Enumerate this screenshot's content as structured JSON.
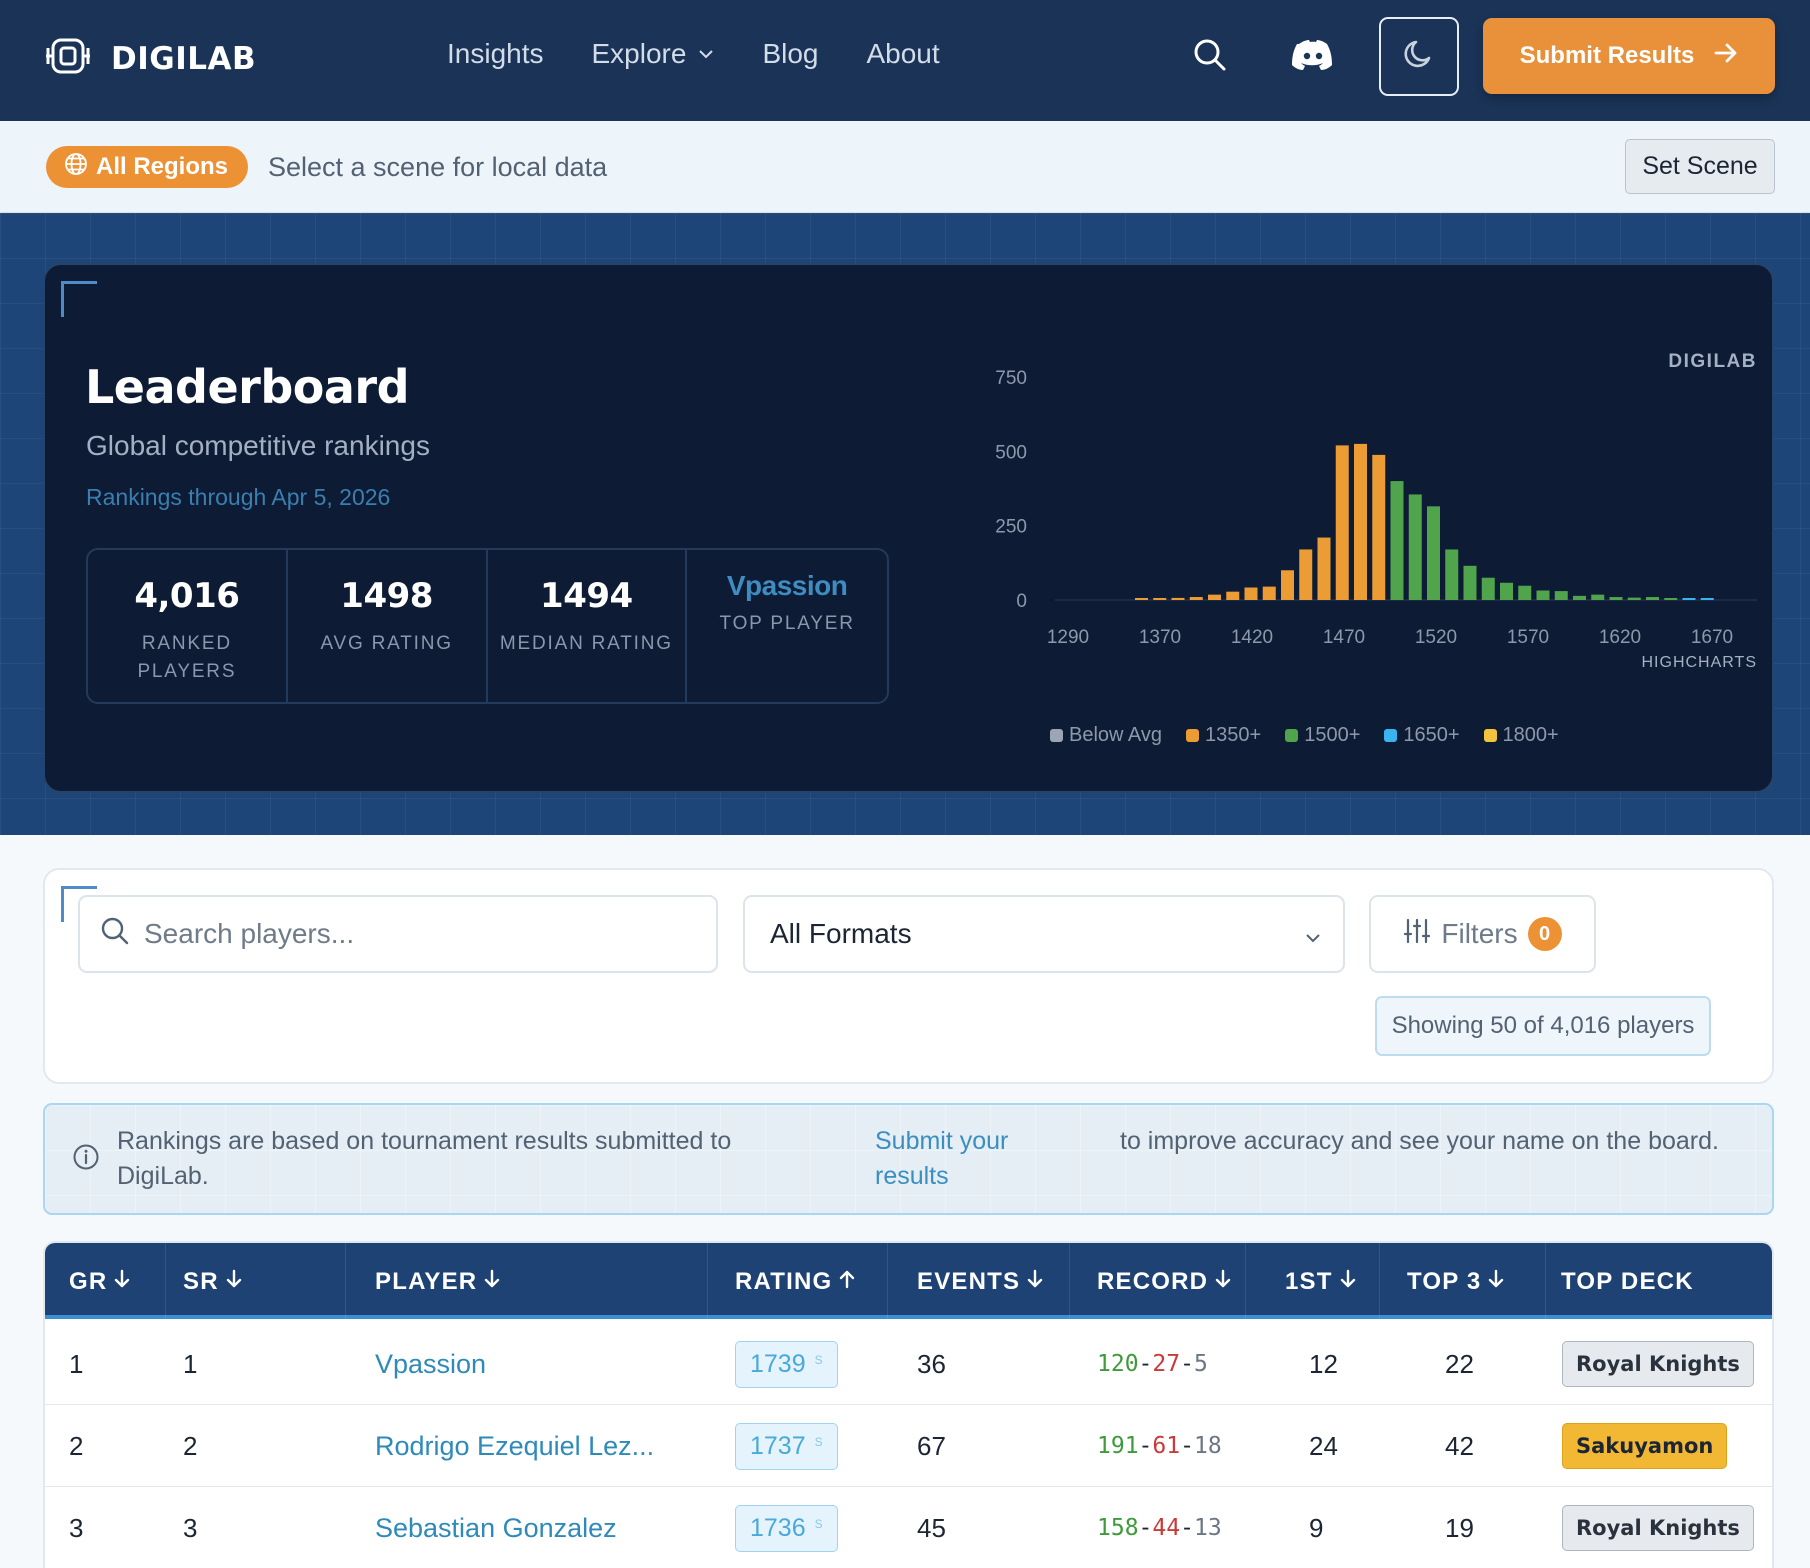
{
  "nav": {
    "logo_text": "DIGILAB",
    "links": [
      "Insights",
      "Explore",
      "Blog",
      "About"
    ],
    "submit_label": "Submit Results"
  },
  "scene": {
    "region_label": "All Regions",
    "prompt": "Select a scene for local data",
    "set_scene_label": "Set Scene"
  },
  "hero": {
    "title": "Leaderboard",
    "subtitle": "Global competitive rankings",
    "date_line": "Rankings through Apr 5, 2026",
    "stats": [
      {
        "value": "4,016",
        "label": "RANKED PLAYERS"
      },
      {
        "value": "1498",
        "label": "AVG RATING"
      },
      {
        "value": "1494",
        "label": "MEDIAN RATING"
      },
      {
        "value": "Vpassion",
        "label": "TOP PLAYER"
      }
    ]
  },
  "chart_data": {
    "type": "bar",
    "brand_label": "DIGILAB",
    "credit": "HIGHCHARTS",
    "x_ticks": [
      "1290",
      "1370",
      "1420",
      "1470",
      "1520",
      "1570",
      "1620",
      "1670"
    ],
    "y_ticks": [
      "0",
      "250",
      "500",
      "750"
    ],
    "ylim": [
      0,
      750
    ],
    "colors": {
      "Below Avg": "#9ba5b4",
      "1350+": "#eb9c34",
      "1500+": "#4fa44c",
      "1650+": "#3ab4ef",
      "1800+": "#f0c43c"
    },
    "legend": [
      "Below Avg",
      "1350+",
      "1500+",
      "1650+",
      "1800+"
    ],
    "bars": [
      {
        "value": 4,
        "band": "1350+"
      },
      {
        "value": 5,
        "band": "1350+"
      },
      {
        "value": 7,
        "band": "1350+"
      },
      {
        "value": 10,
        "band": "1350+"
      },
      {
        "value": 18,
        "band": "1350+"
      },
      {
        "value": 28,
        "band": "1350+"
      },
      {
        "value": 42,
        "band": "1350+"
      },
      {
        "value": 45,
        "band": "1350+"
      },
      {
        "value": 100,
        "band": "1350+"
      },
      {
        "value": 170,
        "band": "1350+"
      },
      {
        "value": 210,
        "band": "1350+"
      },
      {
        "value": 520,
        "band": "1350+"
      },
      {
        "value": 525,
        "band": "1350+"
      },
      {
        "value": 488,
        "band": "1350+"
      },
      {
        "value": 400,
        "band": "1500+"
      },
      {
        "value": 355,
        "band": "1500+"
      },
      {
        "value": 315,
        "band": "1500+"
      },
      {
        "value": 170,
        "band": "1500+"
      },
      {
        "value": 115,
        "band": "1500+"
      },
      {
        "value": 75,
        "band": "1500+"
      },
      {
        "value": 58,
        "band": "1500+"
      },
      {
        "value": 48,
        "band": "1500+"
      },
      {
        "value": 32,
        "band": "1500+"
      },
      {
        "value": 30,
        "band": "1500+"
      },
      {
        "value": 14,
        "band": "1500+"
      },
      {
        "value": 18,
        "band": "1500+"
      },
      {
        "value": 10,
        "band": "1500+"
      },
      {
        "value": 8,
        "band": "1500+"
      },
      {
        "value": 10,
        "band": "1500+"
      },
      {
        "value": 5,
        "band": "1500+"
      },
      {
        "value": 6,
        "band": "1650+"
      },
      {
        "value": 4,
        "band": "1650+"
      }
    ]
  },
  "controls": {
    "search_placeholder": "Search players...",
    "format_value": "All Formats",
    "filters_label": "Filters",
    "filters_count": "0",
    "showing_text": "Showing 50 of 4,016 players"
  },
  "info": {
    "text_before": "Rankings are based on tournament results submitted to DigiLab.",
    "link_text": "Submit your results",
    "text_after": "to improve accuracy and see your name on the board."
  },
  "table": {
    "headers": [
      "GR",
      "SR",
      "PLAYER",
      "RATING",
      "EVENTS",
      "RECORD",
      "1ST",
      "TOP 3",
      "TOP DECK"
    ],
    "rating_suffix": "S",
    "rows": [
      {
        "gr": "1",
        "sr": "1",
        "player": "Vpassion",
        "rating": "1739",
        "events": "36",
        "wins": "120",
        "losses": "27",
        "draws": "5",
        "first": "12",
        "top3": "22",
        "deck": "Royal Knights",
        "deck_style": "gray"
      },
      {
        "gr": "2",
        "sr": "2",
        "player": "Rodrigo Ezequiel Lez...",
        "rating": "1737",
        "events": "67",
        "wins": "191",
        "losses": "61",
        "draws": "18",
        "first": "24",
        "top3": "42",
        "deck": "Sakuyamon",
        "deck_style": "yellow"
      },
      {
        "gr": "3",
        "sr": "3",
        "player": "Sebastian Gonzalez",
        "rating": "1736",
        "events": "45",
        "wins": "158",
        "losses": "44",
        "draws": "13",
        "first": "9",
        "top3": "19",
        "deck": "Royal Knights",
        "deck_style": "gray"
      }
    ]
  }
}
